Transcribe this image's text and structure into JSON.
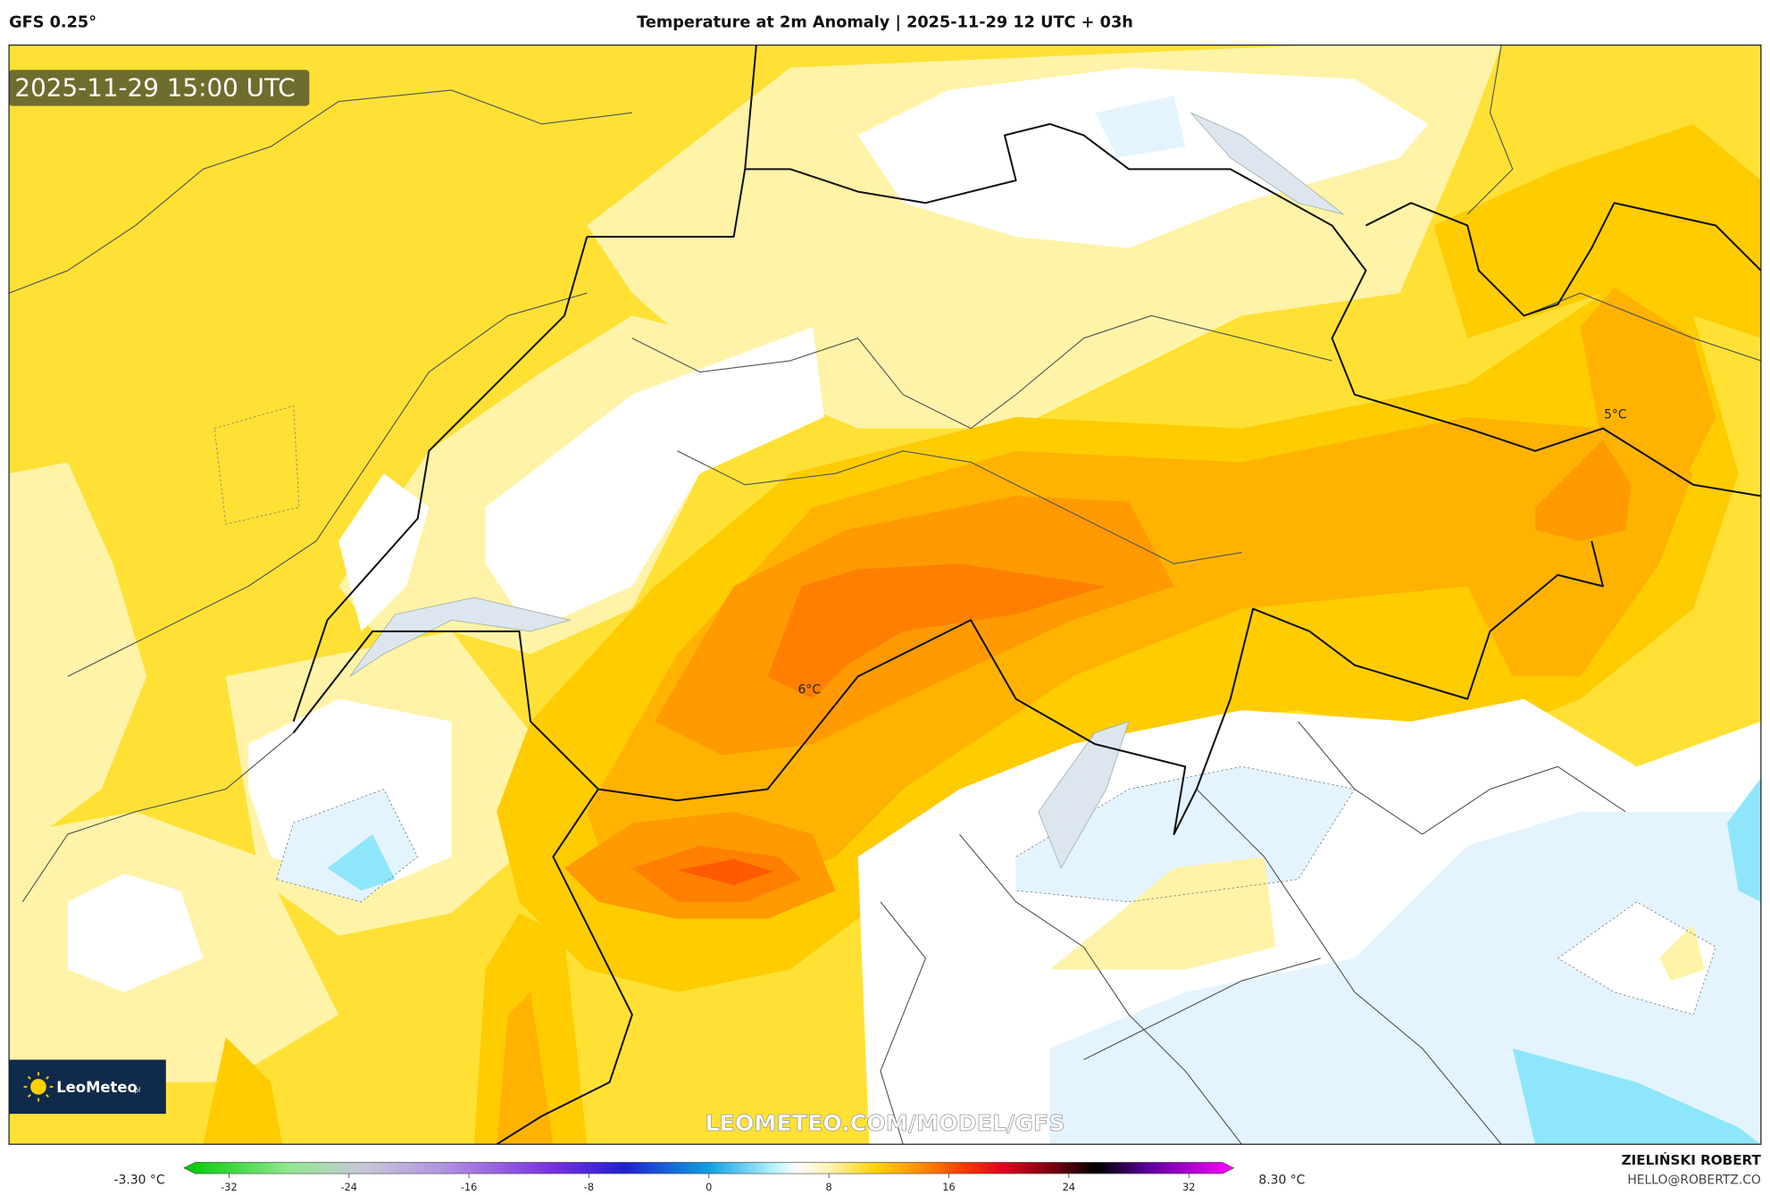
{
  "header": {
    "model": "GFS 0.25°",
    "title": "Temperature at 2m Anomaly | 2025-11-29 12 UTC + 03h"
  },
  "map": {
    "valid_time": "2025-11-29 15:00 UTC",
    "logo": "LeoMeteo",
    "logo_suffix": ".pl",
    "watermark": "LEOMETEO.COM/MODEL/GFS",
    "labels": [
      "6°C",
      "5°C"
    ]
  },
  "colorbar": {
    "min_label": "-3.30 °C",
    "max_label": "8.30 °C",
    "range": [
      -35,
      35
    ],
    "ticks": [
      -32,
      -24,
      -16,
      -8,
      0,
      8,
      16,
      24,
      32
    ]
  },
  "footer": {
    "author": "ZIELIŃSKI ROBERT",
    "contact": "HELLO@ROBERTZ.CO"
  }
}
